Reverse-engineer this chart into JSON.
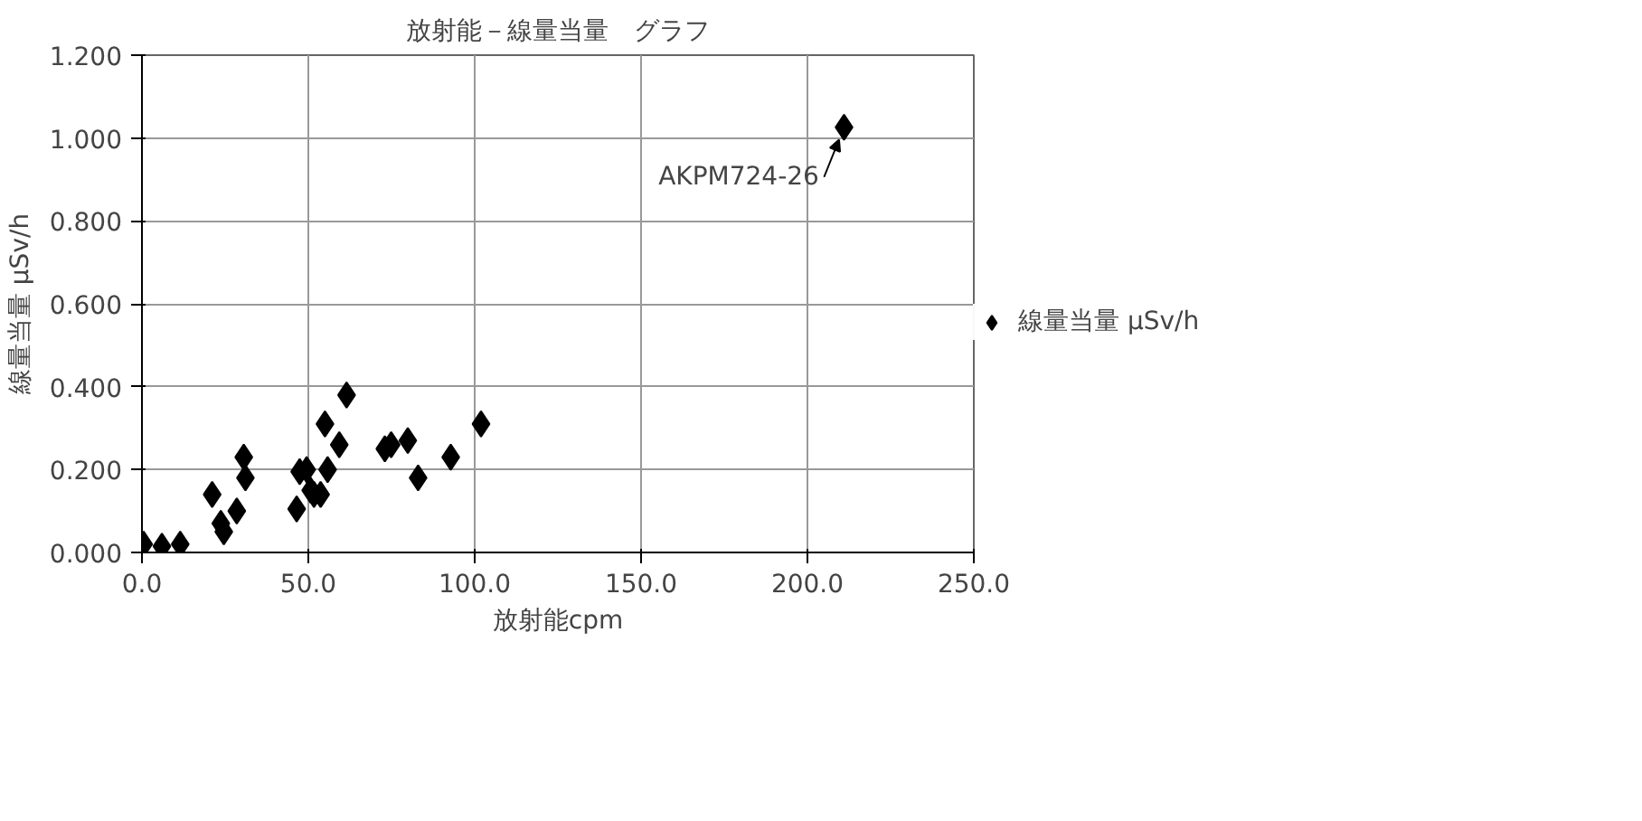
{
  "chart_data": {
    "type": "scatter",
    "title": "放射能－線量当量　グラフ",
    "xlabel": "放射能cpm",
    "ylabel": "線量当量 μSv/h",
    "x": [
      0.5,
      6,
      11.5,
      21.1,
      23.7,
      24.6,
      28.5,
      30.6,
      31.1,
      46.5,
      47.4,
      49.5,
      50.7,
      51.7,
      53.7,
      55,
      55.8,
      59.3,
      61.5,
      73,
      74.9,
      79.9,
      83,
      92.8,
      101.9,
      211
    ],
    "series": [
      {
        "name": "線量当量 μSv/h",
        "color": "#000000",
        "values": [
          0.02,
          0.015,
          0.02,
          0.14,
          0.07,
          0.05,
          0.1,
          0.23,
          0.18,
          0.105,
          0.195,
          0.2,
          0.15,
          0.14,
          0.14,
          0.31,
          0.2,
          0.26,
          0.38,
          0.25,
          0.26,
          0.27,
          0.18,
          0.23,
          0.31,
          1.026
        ]
      }
    ],
    "annotations": [
      {
        "text": "AKPM724-26",
        "x": 211,
        "y": 1.026
      }
    ],
    "xlim": [
      0,
      250
    ],
    "xticks": [
      {
        "value": 0,
        "label": "0.0"
      },
      {
        "value": 50,
        "label": "50.0"
      },
      {
        "value": 100,
        "label": "100.0"
      },
      {
        "value": 150,
        "label": "150.0"
      },
      {
        "value": 200,
        "label": "200.0"
      },
      {
        "value": 250,
        "label": "250.0"
      }
    ],
    "ylim": [
      0,
      1.2
    ],
    "yticks": [
      {
        "value": 0,
        "label": "0.000"
      },
      {
        "value": 0.2,
        "label": "0.200"
      },
      {
        "value": 0.4,
        "label": "0.400"
      },
      {
        "value": 0.6,
        "label": "0.600"
      },
      {
        "value": 0.8,
        "label": "0.800"
      },
      {
        "value": 1.0,
        "label": "1.000"
      },
      {
        "value": 1.2,
        "label": "1.200"
      }
    ],
    "grid": true,
    "legend": "right",
    "marker": "diamond"
  }
}
